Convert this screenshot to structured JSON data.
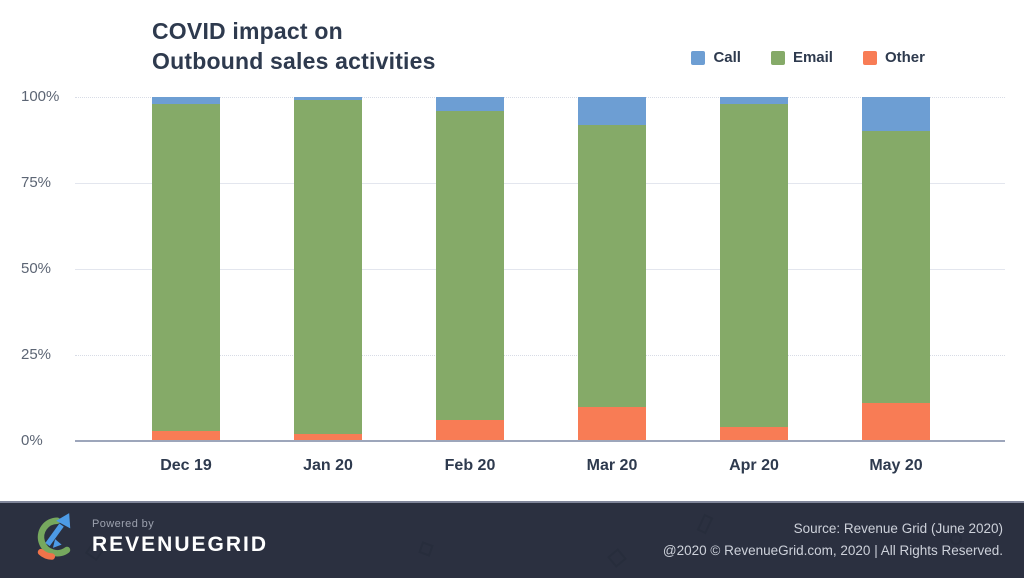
{
  "header": {
    "title_line1": "COVID impact on",
    "title_line2": "Outbound sales activities"
  },
  "legend": [
    {
      "label": "Call",
      "color": "#6D9ED3"
    },
    {
      "label": "Email",
      "color": "#85AA68"
    },
    {
      "label": "Other",
      "color": "#F87C55"
    }
  ],
  "chart_data": {
    "type": "bar",
    "stacked": true,
    "percent_stacked": true,
    "title": "COVID impact on Outbound sales activities",
    "categories": [
      "Dec 19",
      "Jan 20",
      "Feb 20",
      "Mar 20",
      "Apr 20",
      "May 20"
    ],
    "series": [
      {
        "name": "Call",
        "color": "#6D9ED3",
        "values": [
          2,
          1,
          4,
          8,
          2,
          10
        ]
      },
      {
        "name": "Email",
        "color": "#85AA68",
        "values": [
          95,
          97,
          90,
          82,
          94,
          79
        ]
      },
      {
        "name": "Other",
        "color": "#F87C55",
        "values": [
          3,
          2,
          6,
          10,
          4,
          11
        ]
      }
    ],
    "xlabel": "",
    "ylabel": "",
    "ylim": [
      0,
      100
    ],
    "yticks": [
      "100%",
      "75%",
      "50%",
      "25%",
      "0%"
    ],
    "grid": true,
    "legend_position": "top-right",
    "stack_order_bottom_to_top": [
      "Other",
      "Email",
      "Call"
    ]
  },
  "footer": {
    "powered_by": "Powered by",
    "brand": "REVENUEGRID",
    "source_line1": "Source: Revenue Grid (June 2020)",
    "source_line2": "@2020 © RevenueGrid.com, 2020 | All Rights Reserved.",
    "background": "#2B3040"
  },
  "colors": {
    "title_text": "#2E3A4E",
    "axis_text": "#5C6574",
    "gridline": "#E3E6EE",
    "axis_line": "#9DA6BB",
    "footer_background": "#2B3040",
    "footer_text": "#CDD1DA"
  }
}
